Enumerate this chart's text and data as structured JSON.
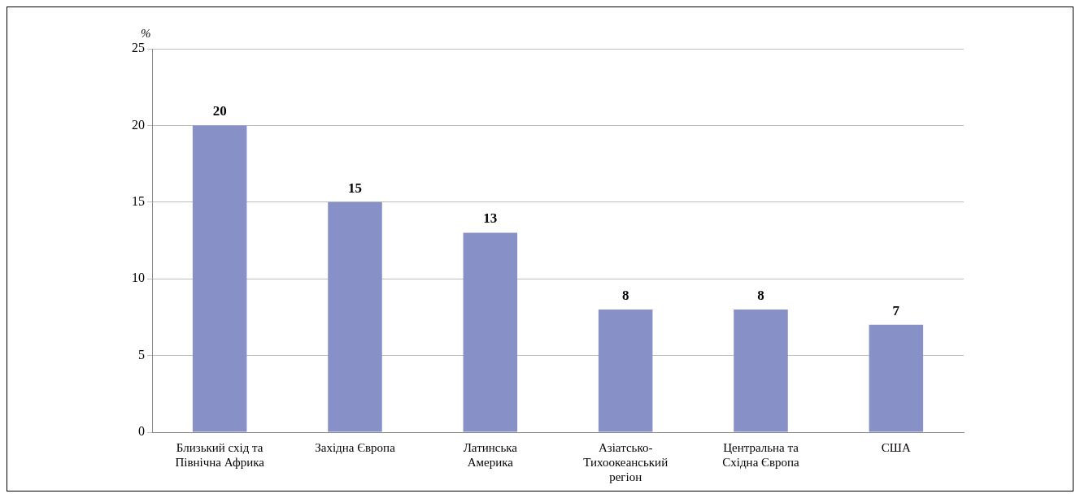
{
  "chart_data": {
    "type": "bar",
    "ylabel": "%",
    "categories": [
      "Близький схід та Північна Африка",
      "Західна Європа",
      "Латинська Америка",
      "Азіатсько-Тихоокеанський регіон",
      "Центральна та Східна Європа",
      "США"
    ],
    "values": [
      20,
      15,
      13,
      8,
      8,
      7
    ],
    "color": "#8890c8",
    "ylim": [
      0,
      25
    ],
    "yticks": [
      0,
      5,
      10,
      15,
      20,
      25
    ],
    "grid": "y",
    "data_labels": true
  }
}
